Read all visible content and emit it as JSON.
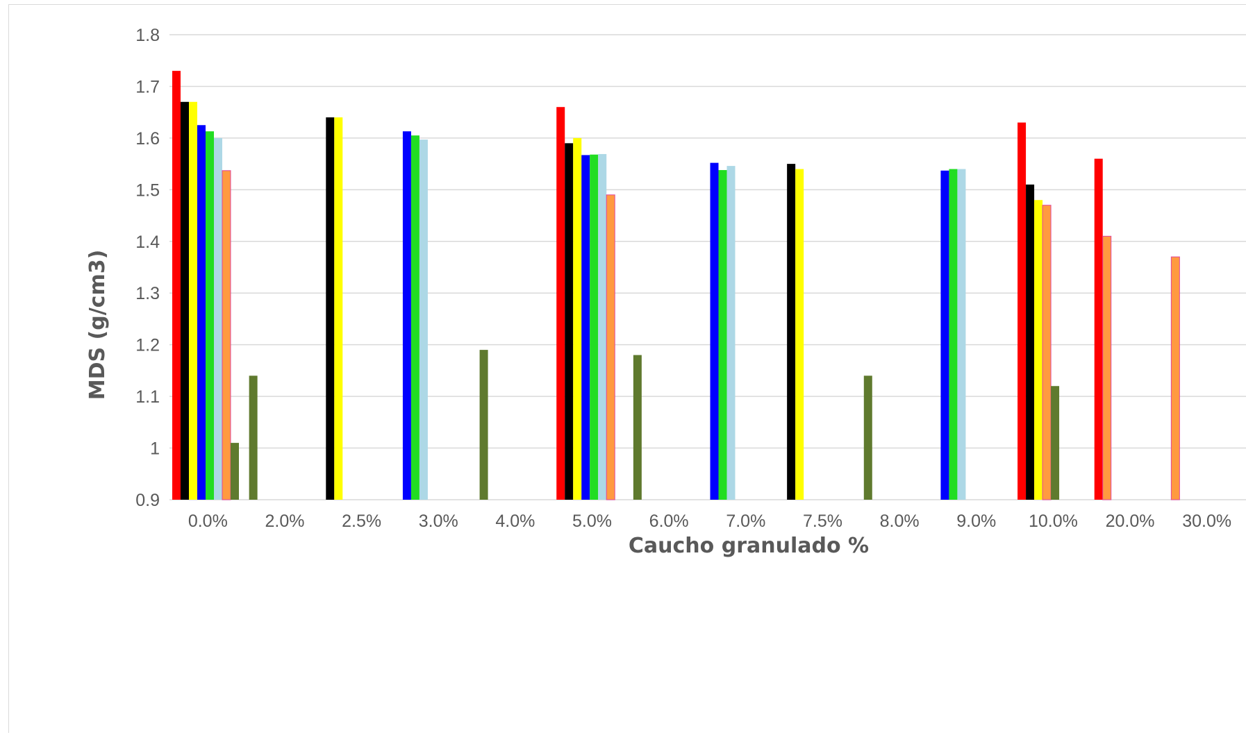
{
  "chart_data": {
    "type": "bar",
    "title": "",
    "xlabel": "Caucho granulado %",
    "ylabel": "MDS (g/cm3)",
    "ylim": [
      0.9,
      1.8
    ],
    "yticks": [
      "0.9",
      "1",
      "1.1",
      "1.2",
      "1.3",
      "1.4",
      "1.5",
      "1.6",
      "1.7",
      "1.8"
    ],
    "grid": true,
    "legend": "none",
    "categories": [
      "0.0%",
      "2.0%",
      "2.5%",
      "3.0%",
      "4.0%",
      "5.0%",
      "6.0%",
      "7.0%",
      "7.5%",
      "8.0%",
      "9.0%",
      "10.0%",
      "20.0%",
      "30.0%"
    ],
    "series": [
      {
        "color": "#ff0000",
        "values": [
          1.73,
          null,
          null,
          null,
          null,
          1.66,
          null,
          null,
          null,
          null,
          null,
          1.63,
          1.56,
          null
        ]
      },
      {
        "color": "#000000",
        "values": [
          1.67,
          null,
          1.64,
          null,
          null,
          1.59,
          null,
          null,
          1.55,
          null,
          null,
          1.51,
          null,
          null
        ]
      },
      {
        "color": "#ffff00",
        "values": [
          1.67,
          null,
          1.64,
          null,
          null,
          1.6,
          null,
          null,
          1.54,
          null,
          null,
          1.48,
          null,
          null
        ]
      },
      {
        "color": "#0000ff",
        "values": [
          1.625,
          null,
          null,
          1.613,
          null,
          1.567,
          null,
          1.552,
          null,
          null,
          1.537,
          null,
          null,
          null
        ]
      },
      {
        "color": "#22dd22",
        "values": [
          1.613,
          null,
          null,
          1.605,
          null,
          1.568,
          null,
          1.538,
          null,
          null,
          1.54,
          null,
          null,
          null
        ]
      },
      {
        "color": "#add8e6",
        "values": [
          1.6,
          null,
          null,
          1.597,
          null,
          1.569,
          null,
          1.546,
          null,
          null,
          1.54,
          null,
          null,
          null
        ]
      },
      {
        "color": "#ff9a40",
        "values": [
          1.537,
          null,
          null,
          null,
          null,
          1.49,
          null,
          null,
          null,
          null,
          null,
          1.47,
          1.41,
          1.37
        ]
      },
      {
        "color": "#5f7a2e",
        "values": [
          1.01,
          1.14,
          null,
          null,
          1.19,
          null,
          1.18,
          null,
          null,
          1.14,
          null,
          1.12,
          null,
          null
        ]
      }
    ]
  }
}
